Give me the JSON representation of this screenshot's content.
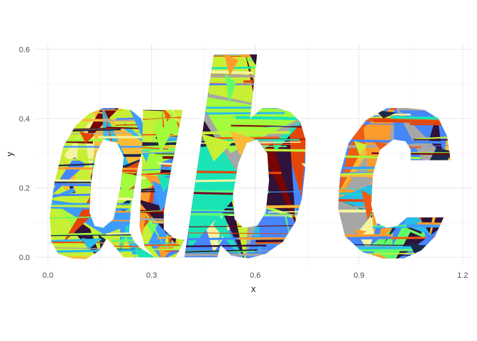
{
  "chart_data": {
    "type": "area",
    "xlabel": "x",
    "ylabel": "y",
    "xlim": [
      -0.04,
      1.225
    ],
    "ylim": [
      -0.02,
      0.615
    ],
    "x_ticks": [
      0.0,
      0.3,
      0.6,
      0.9,
      1.2
    ],
    "y_ticks": [
      0.0,
      0.2,
      0.4,
      0.6
    ],
    "x_tick_labels": [
      "0.0",
      "0.3",
      "0.6",
      "0.9",
      "1.2"
    ],
    "y_tick_labels": [
      "0.0",
      "0.2",
      "0.4",
      "0.6"
    ],
    "grid": true,
    "legend": "none",
    "palette": [
      "#30123b",
      "#4686fb",
      "#1ae4b6",
      "#a2fc3c",
      "#fabb39",
      "#e4460a",
      "#7a0403",
      "#a6a6a6",
      "#f05b12",
      "#28bceb",
      "#c7ef34",
      "#fe9b2d",
      "#3e9bfe",
      "#62fc6b",
      "#1b2a4a",
      "#f4f4a0"
    ],
    "shapes": [
      {
        "name": "a",
        "outer": [
          [
            0.2,
            0.43
          ],
          [
            0.24,
            0.425
          ],
          [
            0.27,
            0.4
          ],
          [
            0.285,
            0.35
          ],
          [
            0.26,
            0.26
          ],
          [
            0.24,
            0.14
          ],
          [
            0.235,
            0.075
          ],
          [
            0.25,
            0.045
          ],
          [
            0.27,
            0.025
          ],
          [
            0.31,
            0.0
          ],
          [
            0.22,
            0.0
          ],
          [
            0.185,
            0.04
          ],
          [
            0.17,
            0.055
          ],
          [
            0.15,
            0.02
          ],
          [
            0.11,
            -0.005
          ],
          [
            0.07,
            -0.003
          ],
          [
            0.03,
            0.01
          ],
          [
            0.01,
            0.045
          ],
          [
            0.005,
            0.12
          ],
          [
            0.02,
            0.22
          ],
          [
            0.045,
            0.32
          ],
          [
            0.08,
            0.38
          ],
          [
            0.12,
            0.415
          ],
          [
            0.16,
            0.43
          ]
        ],
        "hole": [
          [
            0.16,
            0.34
          ],
          [
            0.14,
            0.3
          ],
          [
            0.125,
            0.22
          ],
          [
            0.12,
            0.13
          ],
          [
            0.135,
            0.09
          ],
          [
            0.16,
            0.085
          ],
          [
            0.19,
            0.11
          ],
          [
            0.21,
            0.2
          ],
          [
            0.22,
            0.29
          ],
          [
            0.2,
            0.33
          ]
        ]
      },
      {
        "name": "a-stem",
        "outer": [
          [
            0.275,
            0.425
          ],
          [
            0.39,
            0.425
          ],
          [
            0.355,
            0.245
          ],
          [
            0.335,
            0.13
          ],
          [
            0.335,
            0.08
          ],
          [
            0.365,
            0.055
          ],
          [
            0.395,
            0.05
          ],
          [
            0.37,
            0.0
          ],
          [
            0.31,
            0.0
          ],
          [
            0.28,
            0.03
          ],
          [
            0.265,
            0.09
          ],
          [
            0.27,
            0.2
          ]
        ],
        "hole": []
      },
      {
        "name": "b",
        "outer": [
          [
            0.48,
            0.585
          ],
          [
            0.605,
            0.585
          ],
          [
            0.585,
            0.4
          ],
          [
            0.62,
            0.43
          ],
          [
            0.66,
            0.43
          ],
          [
            0.7,
            0.42
          ],
          [
            0.73,
            0.39
          ],
          [
            0.745,
            0.34
          ],
          [
            0.745,
            0.26
          ],
          [
            0.735,
            0.17
          ],
          [
            0.715,
            0.1
          ],
          [
            0.68,
            0.045
          ],
          [
            0.63,
            0.01
          ],
          [
            0.58,
            -0.003
          ],
          [
            0.53,
            0.005
          ],
          [
            0.5,
            0.035
          ],
          [
            0.49,
            0.0
          ],
          [
            0.395,
            0.0
          ]
        ],
        "hole": [
          [
            0.575,
            0.33
          ],
          [
            0.55,
            0.27
          ],
          [
            0.535,
            0.18
          ],
          [
            0.54,
            0.11
          ],
          [
            0.565,
            0.085
          ],
          [
            0.605,
            0.09
          ],
          [
            0.63,
            0.13
          ],
          [
            0.64,
            0.22
          ],
          [
            0.635,
            0.3
          ],
          [
            0.605,
            0.34
          ]
        ]
      },
      {
        "name": "c",
        "outer": [
          [
            1.04,
            0.43
          ],
          [
            1.09,
            0.425
          ],
          [
            1.13,
            0.4
          ],
          [
            1.155,
            0.35
          ],
          [
            1.165,
            0.28
          ],
          [
            1.05,
            0.28
          ],
          [
            1.05,
            0.31
          ],
          [
            1.035,
            0.335
          ],
          [
            1.0,
            0.34
          ],
          [
            0.96,
            0.31
          ],
          [
            0.94,
            0.24
          ],
          [
            0.935,
            0.15
          ],
          [
            0.95,
            0.1
          ],
          [
            0.98,
            0.085
          ],
          [
            1.01,
            0.09
          ],
          [
            1.04,
            0.115
          ],
          [
            1.145,
            0.115
          ],
          [
            1.12,
            0.06
          ],
          [
            1.08,
            0.02
          ],
          [
            1.03,
            -0.003
          ],
          [
            0.97,
            -0.003
          ],
          [
            0.91,
            0.015
          ],
          [
            0.86,
            0.06
          ],
          [
            0.84,
            0.14
          ],
          [
            0.845,
            0.24
          ],
          [
            0.87,
            0.33
          ],
          [
            0.92,
            0.395
          ],
          [
            0.98,
            0.43
          ]
        ],
        "hole": []
      }
    ]
  }
}
